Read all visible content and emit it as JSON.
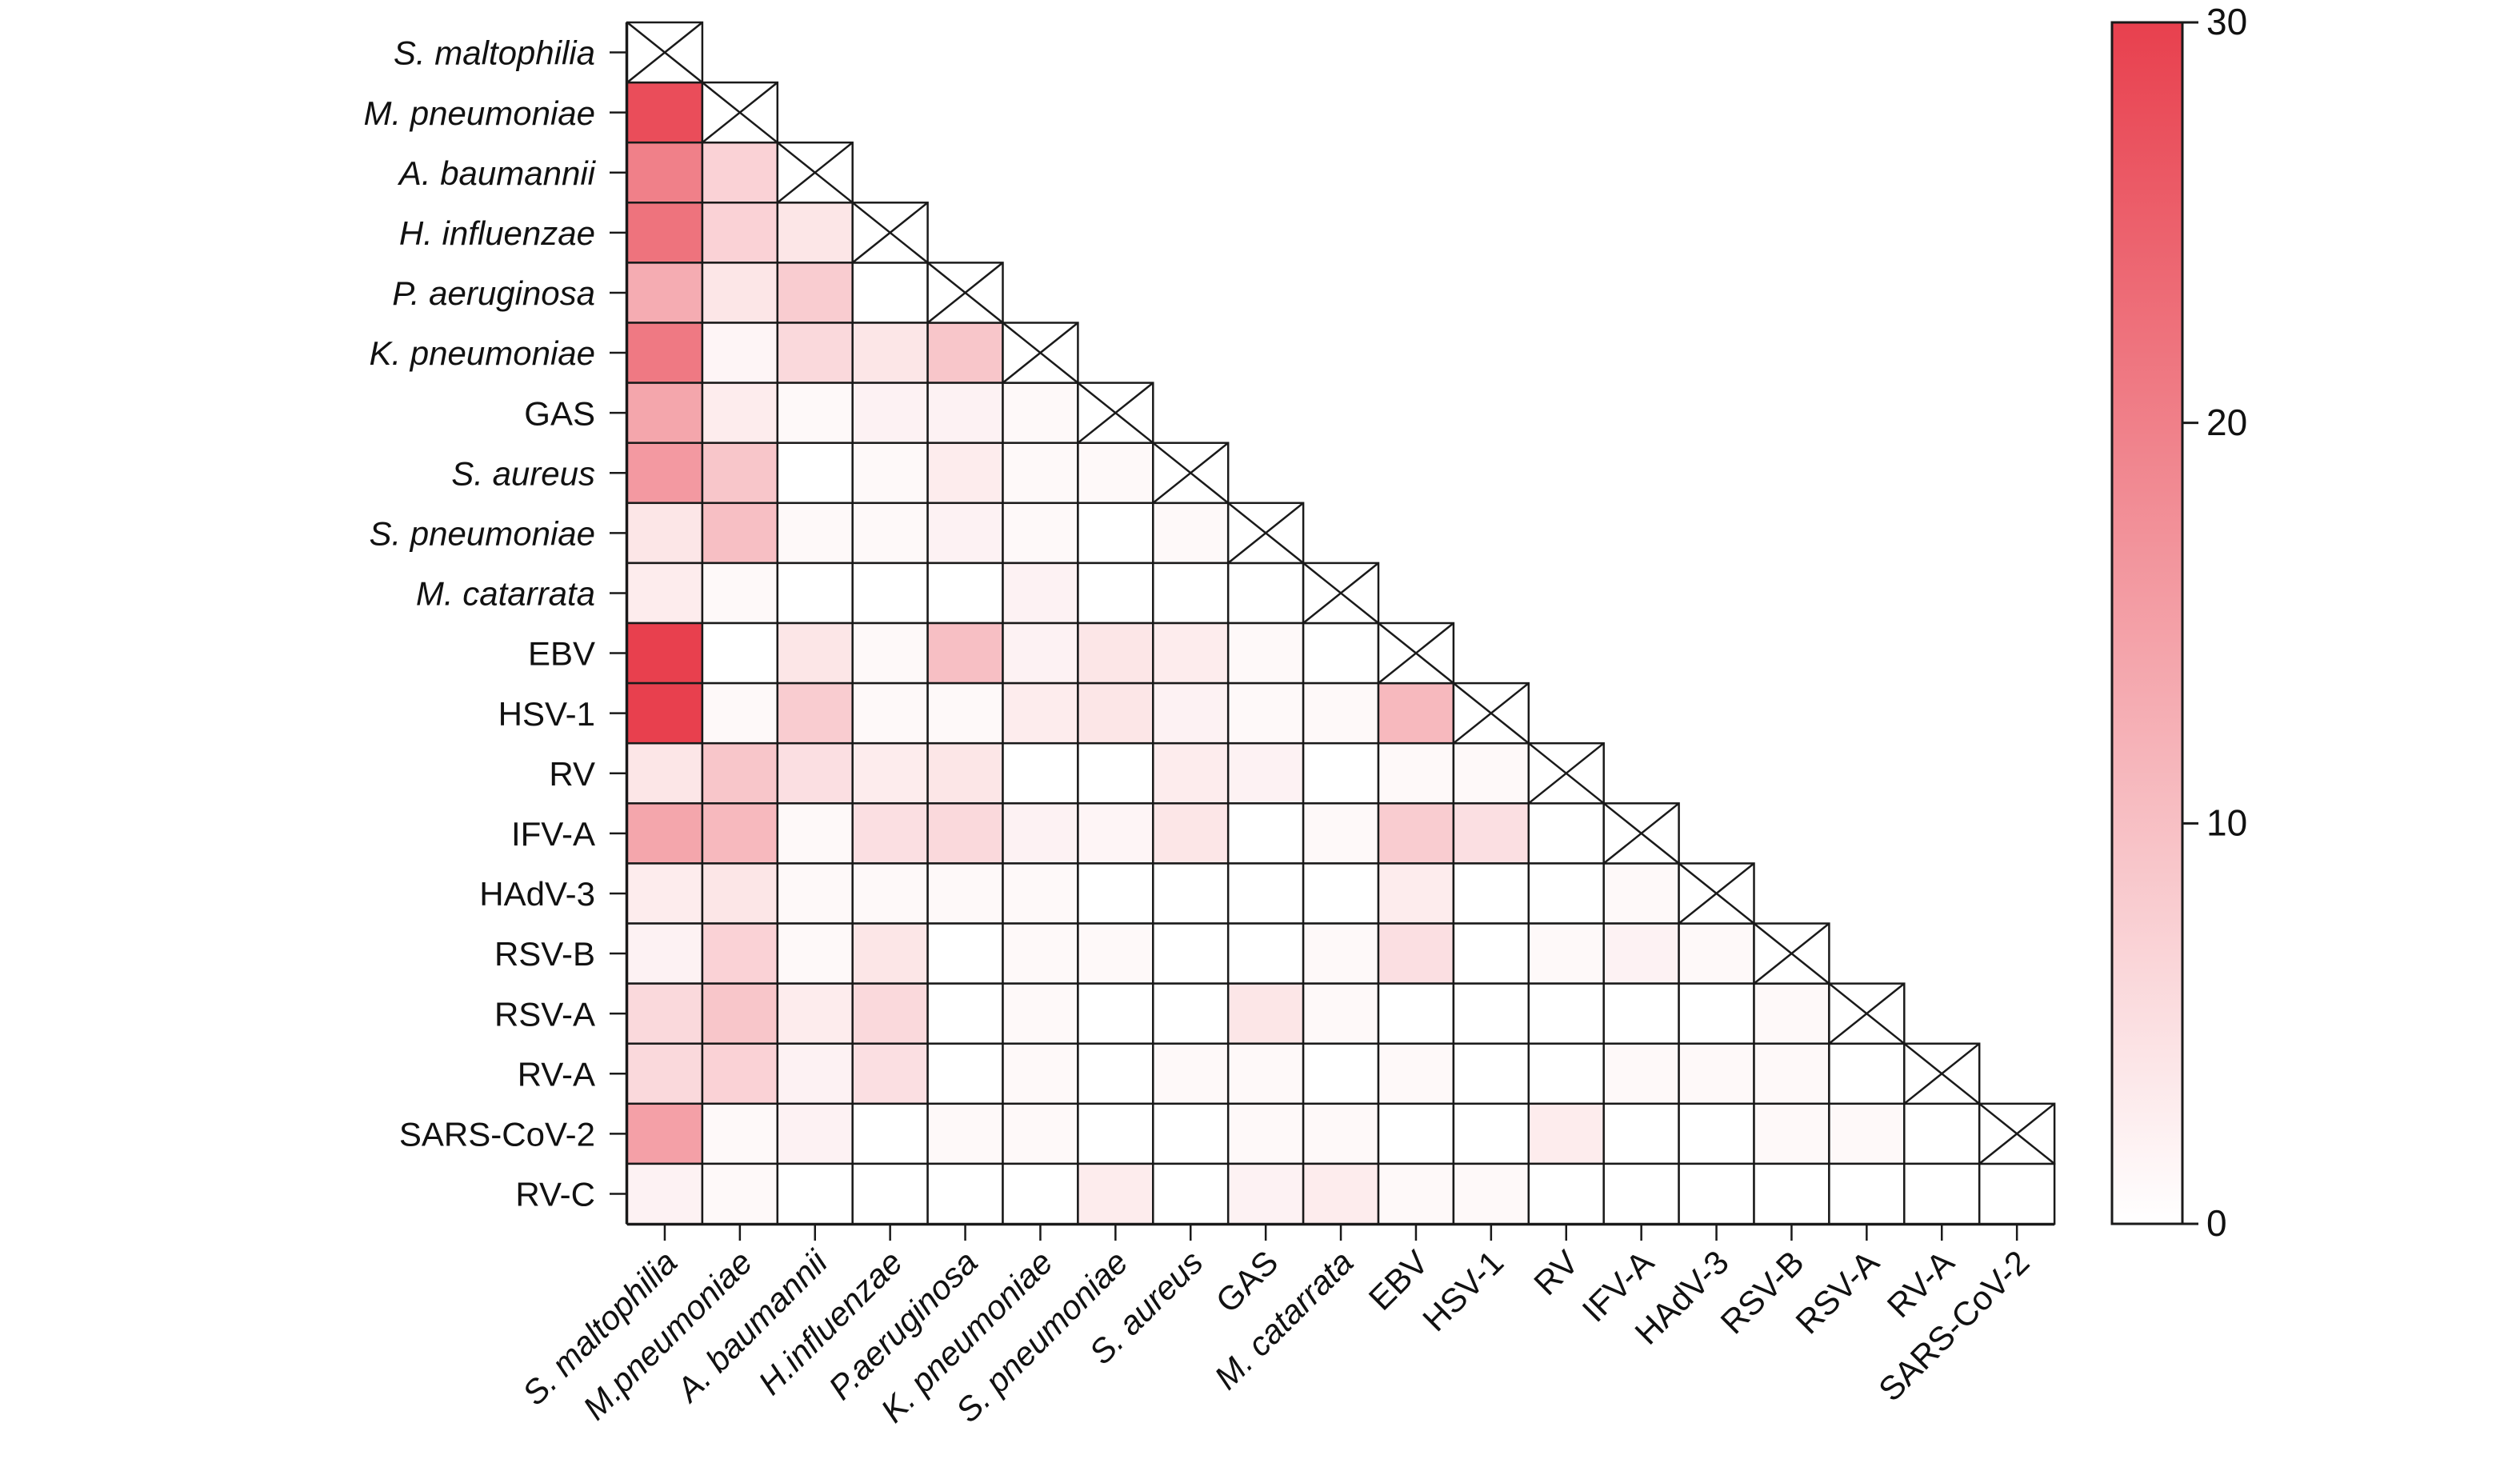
{
  "chart_data": {
    "type": "heatmap",
    "title": "",
    "xlabel": "",
    "ylabel": "",
    "row_labels": [
      {
        "text": "S. maltophilia",
        "italic": true
      },
      {
        "text": "M. pneumoniae",
        "italic": true
      },
      {
        "text": "A. baumannii",
        "italic": true
      },
      {
        "text": "H. influenzae",
        "italic": true
      },
      {
        "text": "P. aeruginosa",
        "italic": true
      },
      {
        "text": "K. pneumoniae",
        "italic": true
      },
      {
        "text": "GAS",
        "italic": false
      },
      {
        "text": "S. aureus",
        "italic": true
      },
      {
        "text": "S. pneumoniae",
        "italic": true
      },
      {
        "text": "M. catarrata",
        "italic": true
      },
      {
        "text": "EBV",
        "italic": false
      },
      {
        "text": "HSV-1",
        "italic": false
      },
      {
        "text": "RV",
        "italic": false
      },
      {
        "text": "IFV-A",
        "italic": false
      },
      {
        "text": "HAdV-3",
        "italic": false
      },
      {
        "text": "RSV-B",
        "italic": false
      },
      {
        "text": "RSV-A",
        "italic": false
      },
      {
        "text": "RV-A",
        "italic": false
      },
      {
        "text": "SARS-CoV-2",
        "italic": false
      },
      {
        "text": "RV-C",
        "italic": false
      }
    ],
    "col_labels": [
      {
        "text": "S. maltophilia",
        "italic": true
      },
      {
        "text": "M.pneumoniae",
        "italic": true
      },
      {
        "text": "A. baumannii",
        "italic": true
      },
      {
        "text": "H.influenzae",
        "italic": true
      },
      {
        "text": "P.aeruginosa",
        "italic": true
      },
      {
        "text": "K. pneumoniae",
        "italic": true
      },
      {
        "text": "S. pneumoniae",
        "italic": true
      },
      {
        "text": "S. aureus",
        "italic": true
      },
      {
        "text": "GAS",
        "italic": false
      },
      {
        "text": "M. catarrata",
        "italic": true
      },
      {
        "text": "EBV",
        "italic": false
      },
      {
        "text": "HSV-1",
        "italic": false
      },
      {
        "text": "RV",
        "italic": false
      },
      {
        "text": "IFV-A",
        "italic": false
      },
      {
        "text": "HAdV-3",
        "italic": false
      },
      {
        "text": "RSV-B",
        "italic": false
      },
      {
        "text": "RSV-A",
        "italic": false
      },
      {
        "text": "RV-A",
        "italic": false
      },
      {
        "text": "SARS-CoV-2",
        "italic": false
      }
    ],
    "values": [
      [],
      [
        28
      ],
      [
        20,
        7
      ],
      [
        22,
        7,
        4
      ],
      [
        13,
        4,
        8,
        0
      ],
      [
        21,
        1.5,
        6,
        4,
        9
      ],
      [
        14,
        3,
        1,
        2,
        2,
        1
      ],
      [
        16,
        9,
        0,
        1,
        3,
        1,
        1
      ],
      [
        4,
        10,
        1,
        1,
        2,
        1,
        0,
        1
      ],
      [
        3,
        1,
        0,
        0,
        0,
        2,
        0,
        0,
        0
      ],
      [
        30,
        0,
        4,
        1,
        10,
        2,
        4,
        3,
        1,
        0
      ],
      [
        30,
        1,
        8,
        1,
        1,
        3,
        4,
        2,
        1,
        1,
        11
      ],
      [
        4,
        9,
        5,
        3,
        4,
        0,
        0,
        3,
        2,
        0,
        1,
        1
      ],
      [
        14,
        11,
        1,
        5,
        6,
        2,
        1.5,
        4,
        0,
        1,
        8,
        5,
        0
      ],
      [
        3,
        4,
        1,
        1,
        1,
        1,
        0,
        0,
        0,
        0,
        3,
        0,
        0,
        1
      ],
      [
        2,
        7,
        1,
        4,
        0,
        1,
        1,
        0,
        0,
        1,
        5,
        0,
        1,
        2,
        1
      ],
      [
        6,
        9,
        3,
        6,
        0,
        1,
        0,
        0,
        4,
        1,
        0,
        0,
        0,
        0,
        0,
        1
      ],
      [
        6,
        7,
        2,
        5,
        0,
        1,
        0,
        1,
        1,
        0,
        1,
        0,
        0,
        1,
        1,
        1,
        0
      ],
      [
        15,
        1,
        2,
        0,
        1,
        1,
        0,
        0,
        1,
        1,
        0,
        0,
        3,
        0,
        0,
        1,
        1,
        0
      ],
      [
        2,
        1,
        0,
        0,
        0,
        0,
        3,
        0,
        2,
        3,
        1,
        1,
        0,
        0,
        0,
        0,
        0,
        0,
        0
      ]
    ],
    "colorbar": {
      "range": [
        0,
        30
      ],
      "ticks": [
        "0",
        "10",
        "20",
        "30"
      ],
      "min_color": "#ffffff",
      "max_color": "#e8404e"
    }
  }
}
